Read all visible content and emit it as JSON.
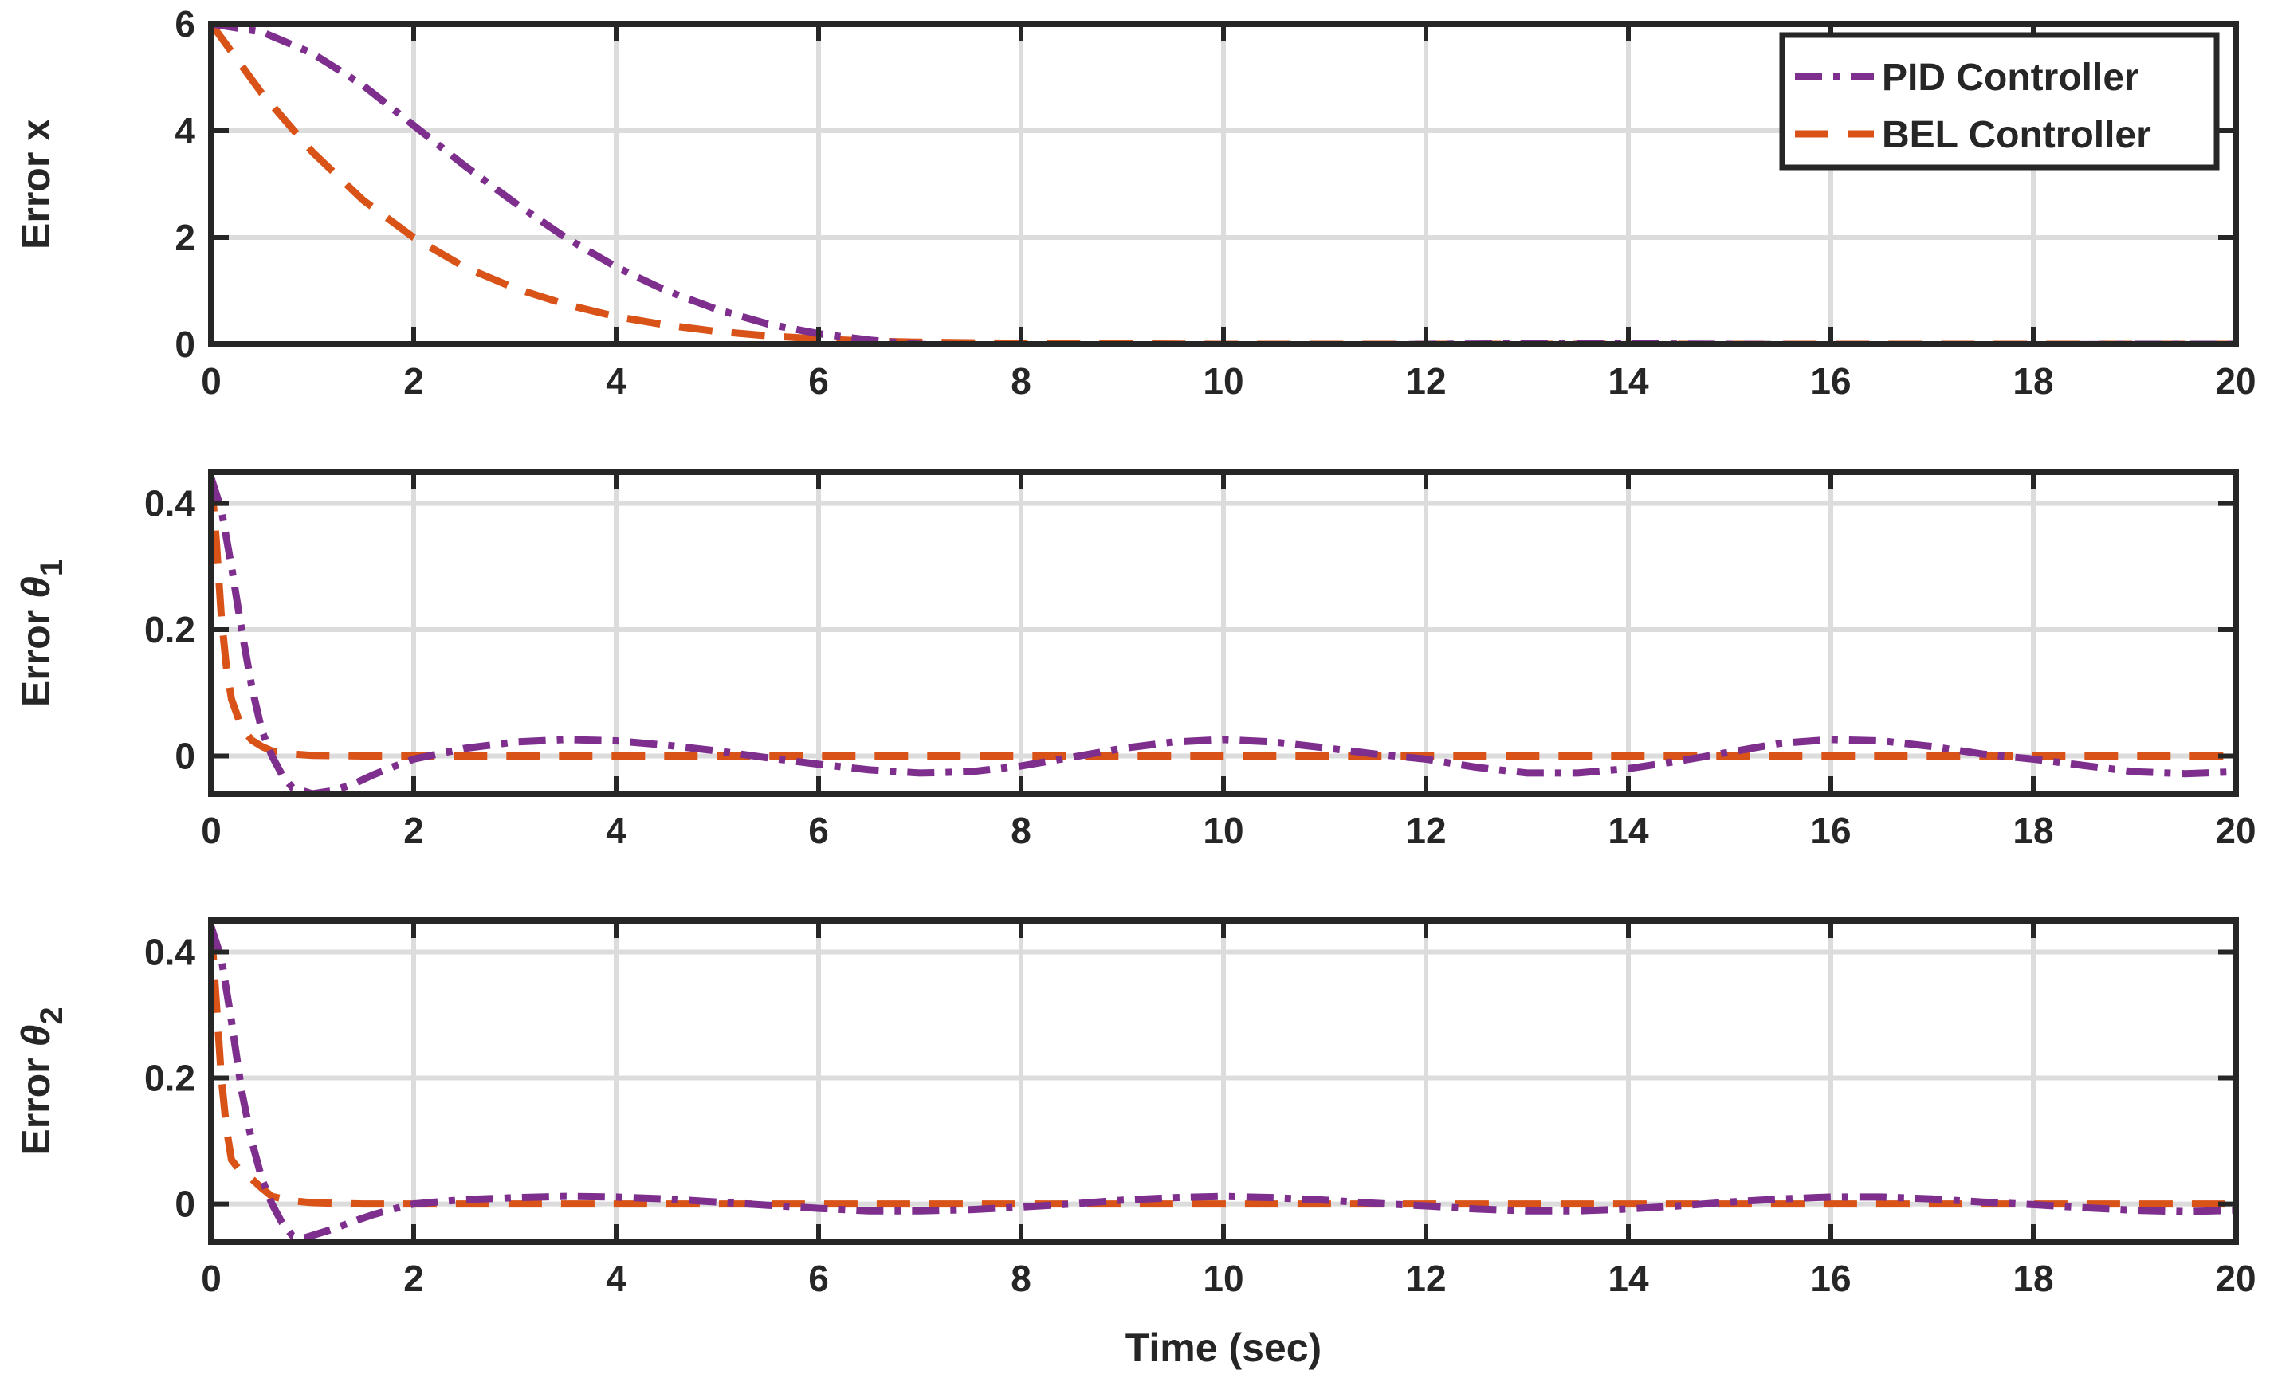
{
  "chart_data": [
    {
      "type": "line",
      "ylabel": "Error x",
      "ylabel_main": "Error x",
      "ylabel_sub": "",
      "xlabel": "",
      "xlim": [
        0,
        20
      ],
      "ylim": [
        0,
        6
      ],
      "xticks": [
        "0",
        "2",
        "4",
        "6",
        "8",
        "10",
        "12",
        "14",
        "16",
        "18",
        "20"
      ],
      "yticks": [
        "0",
        "2",
        "4",
        "6"
      ],
      "grid": true,
      "legend": "top-right",
      "series": [
        {
          "name": "PID Controller",
          "color": "#7E2F8E",
          "style": "dash-dot",
          "x": [
            0,
            0.5,
            1,
            1.5,
            2,
            2.5,
            3,
            3.5,
            4,
            4.5,
            5,
            5.5,
            6,
            6.5,
            7,
            7.5,
            8,
            9,
            10,
            11,
            12,
            13,
            14,
            15,
            16,
            17,
            18,
            19,
            20
          ],
          "y": [
            6,
            5.85,
            5.45,
            4.85,
            4.1,
            3.35,
            2.65,
            2.0,
            1.45,
            1.0,
            0.65,
            0.38,
            0.2,
            0.08,
            0.0,
            -0.05,
            -0.07,
            -0.06,
            -0.04,
            -0.02,
            0.0,
            0.01,
            0.01,
            0.0,
            -0.01,
            -0.01,
            -0.01,
            0.0,
            0.0
          ]
        },
        {
          "name": "BEL Controller",
          "color": "#D95319",
          "style": "dash",
          "x": [
            0,
            0.5,
            1,
            1.5,
            2,
            2.5,
            3,
            3.5,
            4,
            4.5,
            5,
            5.5,
            6,
            6.5,
            7,
            7.5,
            8,
            9,
            10,
            12,
            14,
            16,
            18,
            20
          ],
          "y": [
            6,
            4.7,
            3.6,
            2.7,
            2.0,
            1.45,
            1.05,
            0.75,
            0.52,
            0.36,
            0.24,
            0.16,
            0.1,
            0.06,
            0.04,
            0.03,
            0.02,
            0.01,
            0.0,
            0.0,
            0.0,
            0.0,
            0.0,
            0.0
          ]
        }
      ]
    },
    {
      "type": "line",
      "ylabel": "Error θ1",
      "ylabel_main": "Error θ",
      "ylabel_sub": "1",
      "xlabel": "",
      "xlim": [
        0,
        20
      ],
      "ylim": [
        -0.06,
        0.45
      ],
      "xticks": [
        "0",
        "2",
        "4",
        "6",
        "8",
        "10",
        "12",
        "14",
        "16",
        "18",
        "20"
      ],
      "yticks": [
        "0",
        "0.2",
        "0.4"
      ],
      "grid": true,
      "series": [
        {
          "name": "PID Controller",
          "color": "#7E2F8E",
          "style": "dash-dot",
          "x": [
            0,
            0.1,
            0.2,
            0.3,
            0.4,
            0.5,
            0.6,
            0.7,
            0.8,
            0.9,
            1.0,
            1.2,
            1.4,
            1.6,
            1.8,
            2.0,
            2.5,
            3.0,
            3.5,
            4.0,
            4.5,
            5.0,
            5.5,
            6.0,
            6.5,
            7.0,
            7.5,
            8.0,
            8.5,
            9.0,
            9.5,
            10.0,
            10.5,
            11.0,
            11.5,
            12.0,
            12.5,
            13.0,
            13.5,
            14.0,
            14.5,
            15.0,
            15.5,
            16.0,
            16.5,
            17.0,
            17.5,
            18.0,
            18.5,
            19.0,
            19.5,
            20.0
          ],
          "y": [
            0.44,
            0.39,
            0.3,
            0.2,
            0.11,
            0.04,
            0.0,
            -0.03,
            -0.05,
            -0.055,
            -0.06,
            -0.055,
            -0.045,
            -0.03,
            -0.017,
            -0.005,
            0.012,
            0.022,
            0.026,
            0.024,
            0.017,
            0.008,
            -0.003,
            -0.013,
            -0.022,
            -0.027,
            -0.025,
            -0.016,
            -0.002,
            0.012,
            0.022,
            0.026,
            0.022,
            0.013,
            0.003,
            -0.005,
            -0.018,
            -0.027,
            -0.027,
            -0.02,
            -0.008,
            0.006,
            0.02,
            0.026,
            0.024,
            0.015,
            0.003,
            -0.005,
            -0.015,
            -0.025,
            -0.028,
            -0.025
          ]
        },
        {
          "name": "BEL Controller",
          "color": "#D95319",
          "style": "dash",
          "x": [
            0,
            0.05,
            0.1,
            0.15,
            0.2,
            0.3,
            0.4,
            0.5,
            0.6,
            0.8,
            1.0,
            1.5,
            2.0,
            20.0
          ],
          "y": [
            0.44,
            0.34,
            0.22,
            0.14,
            0.09,
            0.045,
            0.025,
            0.015,
            0.008,
            0.003,
            0.001,
            0.0,
            0.0,
            0.0
          ]
        }
      ]
    },
    {
      "type": "line",
      "ylabel": "Error θ2",
      "ylabel_main": "Error θ",
      "ylabel_sub": "2",
      "xlabel": "Time (sec)",
      "xlim": [
        0,
        20
      ],
      "ylim": [
        -0.06,
        0.45
      ],
      "xticks": [
        "0",
        "2",
        "4",
        "6",
        "8",
        "10",
        "12",
        "14",
        "16",
        "18",
        "20"
      ],
      "yticks": [
        "0",
        "0.2",
        "0.4"
      ],
      "grid": true,
      "series": [
        {
          "name": "PID Controller",
          "color": "#7E2F8E",
          "style": "dash-dot",
          "x": [
            0,
            0.1,
            0.2,
            0.3,
            0.4,
            0.5,
            0.6,
            0.7,
            0.8,
            0.9,
            1.0,
            1.2,
            1.4,
            1.6,
            1.8,
            2.0,
            2.5,
            3.0,
            3.5,
            4.0,
            4.5,
            5.0,
            5.5,
            6.0,
            6.5,
            7.0,
            7.5,
            8.0,
            8.5,
            9.0,
            9.5,
            10.0,
            10.5,
            11.0,
            11.5,
            12.0,
            12.5,
            13.0,
            13.5,
            14.0,
            14.5,
            15.0,
            15.5,
            16.0,
            16.5,
            17.0,
            17.5,
            18.0,
            18.5,
            19.0,
            19.5,
            20.0
          ],
          "y": [
            0.44,
            0.39,
            0.29,
            0.18,
            0.1,
            0.04,
            0.0,
            -0.03,
            -0.05,
            -0.055,
            -0.05,
            -0.04,
            -0.028,
            -0.017,
            -0.008,
            0.0,
            0.007,
            0.01,
            0.012,
            0.011,
            0.008,
            0.003,
            -0.002,
            -0.007,
            -0.011,
            -0.011,
            -0.009,
            -0.005,
            0.0,
            0.006,
            0.01,
            0.012,
            0.01,
            0.006,
            0.001,
            -0.003,
            -0.008,
            -0.011,
            -0.011,
            -0.008,
            -0.003,
            0.003,
            0.008,
            0.011,
            0.011,
            0.008,
            0.003,
            -0.001,
            -0.006,
            -0.01,
            -0.012,
            -0.01
          ]
        },
        {
          "name": "BEL Controller",
          "color": "#D95319",
          "style": "dash",
          "x": [
            0,
            0.05,
            0.1,
            0.15,
            0.2,
            0.3,
            0.4,
            0.5,
            0.6,
            0.8,
            1.0,
            1.5,
            2.0,
            20.0
          ],
          "y": [
            0.44,
            0.32,
            0.2,
            0.12,
            0.07,
            0.05,
            0.04,
            0.025,
            0.012,
            0.005,
            0.002,
            0.0,
            0.0,
            0.0
          ]
        }
      ]
    }
  ]
}
